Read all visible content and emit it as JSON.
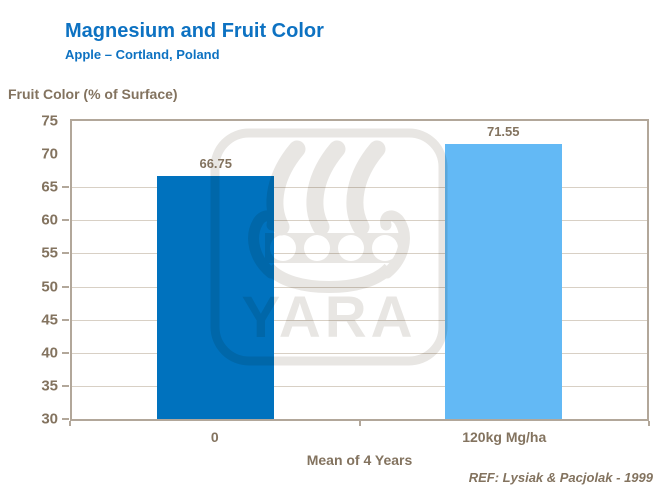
{
  "chart_data": {
    "type": "bar",
    "title": "Magnesium and Fruit Color",
    "subtitle": "Apple – Cortland, Poland",
    "y_axis_title": "Fruit Color (% of Surface)",
    "x_axis_title": "Mean of 4 Years",
    "reference": "REF: Lysiak & Pacjolak - 1999",
    "categories": [
      "0",
      "120kg Mg/ha"
    ],
    "values": [
      66.75,
      71.55
    ],
    "data_labels": [
      "66.75",
      "71.55"
    ],
    "ylim": [
      30,
      75
    ],
    "y_ticks": [
      75,
      70,
      65,
      60,
      55,
      50,
      45,
      40,
      35,
      30
    ],
    "gridline_values": [
      65,
      60,
      55,
      50,
      45,
      40,
      35
    ],
    "grid": true,
    "legend_position": "none",
    "bar_colors": [
      "#0072BE",
      "#63B9F5"
    ],
    "watermark_text": "YARA"
  },
  "colors": {
    "title_blue": "#0D72C2",
    "axis_text_brown": "#83735F",
    "gridline": "#D8D0C5",
    "plot_border": "#B2A79A",
    "watermark_gray": "#E8E6E3"
  }
}
